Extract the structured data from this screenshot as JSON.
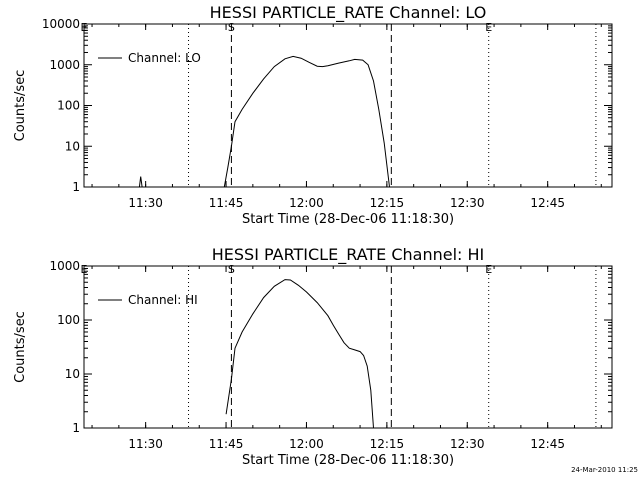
{
  "footer": {
    "timestamp": "24-Mar-2010 11:25"
  },
  "chart_data": [
    {
      "type": "line",
      "title": "HESSI PARTICLE_RATE Channel: LO",
      "xlabel": "Start Time (28-Dec-06 11:18:30)",
      "ylabel": "Counts/sec",
      "y_scale": "log",
      "ylim": [
        1,
        10000
      ],
      "y_ticks": [
        "1",
        "10",
        "100",
        "1000",
        "10000"
      ],
      "xlim": [
        "11:18:30",
        "12:57:00"
      ],
      "x_ticks": [
        "11:30",
        "11:45",
        "12:00",
        "12:15",
        "12:30",
        "12:45"
      ],
      "legend": {
        "position": "top-left",
        "entries": [
          "Channel: LO"
        ]
      },
      "markers": [
        {
          "label": "E",
          "time": "11:18:30",
          "style": "solid"
        },
        {
          "label": "",
          "time": "11:38:00",
          "style": "dotted"
        },
        {
          "label": "S",
          "time": "11:46:00",
          "style": "dashed"
        },
        {
          "label": "",
          "time": "12:15:50",
          "style": "dashed"
        },
        {
          "label": "E",
          "time": "12:34:00",
          "style": "dotted"
        },
        {
          "label": "",
          "time": "12:54:00",
          "style": "dotted"
        }
      ],
      "series": [
        {
          "name": "Channel: LO",
          "segments": [
            [
              [
                "11:28:50",
                1
              ],
              [
                "11:29:05",
                1.8
              ],
              [
                "11:29:20",
                1
              ]
            ],
            [
              [
                "11:44:40",
                1
              ],
              [
                "11:45:20",
                3
              ],
              [
                "11:46:00",
                10
              ],
              [
                "11:46:40",
                40
              ],
              [
                "11:48:00",
                80
              ],
              [
                "11:50:00",
                200
              ],
              [
                "11:52:00",
                450
              ],
              [
                "11:54:00",
                900
              ],
              [
                "11:56:00",
                1400
              ],
              [
                "11:57:30",
                1600
              ],
              [
                "11:59:00",
                1450
              ],
              [
                "12:00:30",
                1150
              ],
              [
                "12:02:00",
                920
              ],
              [
                "12:03:00",
                900
              ],
              [
                "12:04:00",
                950
              ],
              [
                "12:06:00",
                1100
              ],
              [
                "12:08:00",
                1250
              ],
              [
                "12:09:00",
                1350
              ],
              [
                "12:10:30",
                1300
              ],
              [
                "12:11:30",
                1000
              ],
              [
                "12:12:30",
                400
              ],
              [
                "12:13:30",
                80
              ],
              [
                "12:14:30",
                12
              ],
              [
                "12:15:30",
                1
              ]
            ]
          ]
        }
      ]
    },
    {
      "type": "line",
      "title": "HESSI PARTICLE_RATE Channel: HI",
      "xlabel": "Start Time (28-Dec-06 11:18:30)",
      "ylabel": "Counts/sec",
      "y_scale": "log",
      "ylim": [
        1,
        1000
      ],
      "y_ticks": [
        "1",
        "10",
        "100",
        "1000"
      ],
      "xlim": [
        "11:18:30",
        "12:57:00"
      ],
      "x_ticks": [
        "11:30",
        "11:45",
        "12:00",
        "12:15",
        "12:30",
        "12:45"
      ],
      "legend": {
        "position": "top-left",
        "entries": [
          "Channel: HI"
        ]
      },
      "markers": [
        {
          "label": "E",
          "time": "11:18:30",
          "style": "solid"
        },
        {
          "label": "",
          "time": "11:38:00",
          "style": "dotted"
        },
        {
          "label": "S",
          "time": "11:46:00",
          "style": "dashed"
        },
        {
          "label": "",
          "time": "12:15:50",
          "style": "dashed"
        },
        {
          "label": "E",
          "time": "12:34:00",
          "style": "dotted"
        },
        {
          "label": "",
          "time": "12:54:00",
          "style": "dotted"
        }
      ],
      "series": [
        {
          "name": "Channel: HI",
          "segments": [
            [
              [
                "11:45:00",
                1.8
              ],
              [
                "11:46:00",
                8
              ],
              [
                "11:46:40",
                30
              ],
              [
                "11:48:00",
                60
              ],
              [
                "11:50:00",
                130
              ],
              [
                "11:52:00",
                260
              ],
              [
                "11:54:00",
                420
              ],
              [
                "11:56:00",
                560
              ],
              [
                "11:57:00",
                550
              ],
              [
                "11:58:30",
                440
              ],
              [
                "12:00:00",
                330
              ],
              [
                "12:02:00",
                210
              ],
              [
                "12:04:00",
                120
              ],
              [
                "12:05:00",
                80
              ],
              [
                "12:06:00",
                55
              ],
              [
                "12:07:00",
                38
              ],
              [
                "12:08:00",
                30
              ],
              [
                "12:09:00",
                28
              ],
              [
                "12:10:00",
                26
              ],
              [
                "12:10:40",
                22
              ],
              [
                "12:11:20",
                14
              ],
              [
                "12:12:00",
                5
              ],
              [
                "12:12:30",
                1
              ]
            ]
          ]
        }
      ]
    }
  ]
}
